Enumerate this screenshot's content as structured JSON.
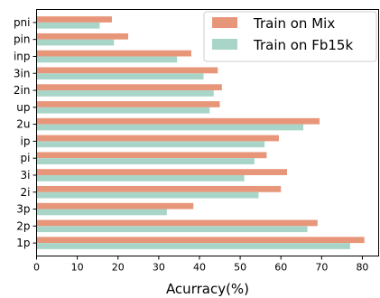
{
  "chart_data": {
    "type": "bar",
    "orientation": "horizontal",
    "categories": [
      "pni",
      "pin",
      "inp",
      "3in",
      "2in",
      "up",
      "2u",
      "ip",
      "pi",
      "3i",
      "2i",
      "3p",
      "2p",
      "1p"
    ],
    "series": [
      {
        "name": "Train on Mix",
        "color": "#E8967A",
        "values": [
          18.5,
          22.5,
          38.0,
          44.5,
          45.5,
          45.0,
          69.5,
          59.5,
          56.5,
          61.5,
          60.0,
          38.5,
          69.0,
          80.5
        ]
      },
      {
        "name": "Train on Fb15k",
        "color": "#A8D5C8",
        "values": [
          15.5,
          19.0,
          34.5,
          41.0,
          43.5,
          42.5,
          65.5,
          56.0,
          53.5,
          51.0,
          54.5,
          32.0,
          66.5,
          77.0
        ]
      }
    ],
    "xlabel": "Acurracy(%)",
    "ylabel": "",
    "xlim": [
      0,
      84
    ],
    "xticks": [
      "0",
      "10",
      "20",
      "30",
      "40",
      "50",
      "60",
      "70",
      "80"
    ],
    "grid": false,
    "legend": "top-right"
  }
}
